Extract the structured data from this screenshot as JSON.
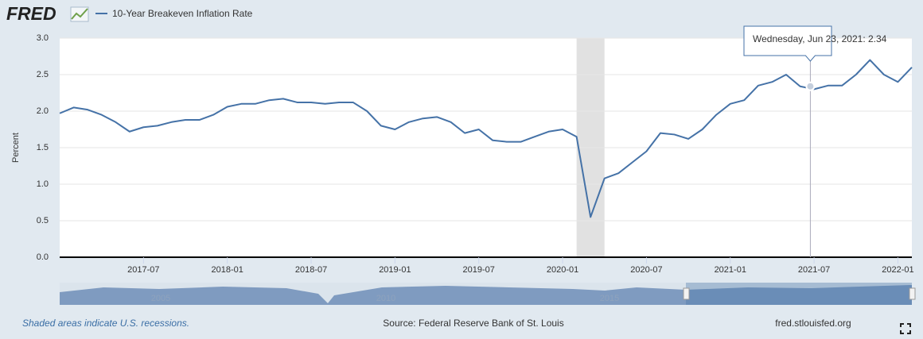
{
  "header": {
    "logo": "FRED"
  },
  "chart_data": {
    "type": "line",
    "series": [
      {
        "name": "10-Year Breakeven Inflation Rate",
        "color": "#4572a7",
        "values": [
          1.97,
          2.05,
          2.02,
          1.95,
          1.85,
          1.72,
          1.78,
          1.8,
          1.85,
          1.88,
          1.88,
          1.95,
          2.06,
          2.1,
          2.1,
          2.15,
          2.17,
          2.12,
          2.12,
          2.1,
          2.12,
          2.12,
          2.0,
          1.8,
          1.75,
          1.85,
          1.9,
          1.92,
          1.85,
          1.7,
          1.75,
          1.6,
          1.58,
          1.58,
          1.65,
          1.72,
          1.75,
          1.65,
          0.55,
          1.08,
          1.15,
          1.3,
          1.45,
          1.7,
          1.68,
          1.62,
          1.75,
          1.95,
          2.1,
          2.15,
          2.35,
          2.4,
          2.5,
          2.34,
          2.3,
          2.35,
          2.35,
          2.5,
          2.7,
          2.5,
          2.4,
          2.6
        ]
      }
    ],
    "x": [
      "2017-01",
      "2017-02",
      "2017-03",
      "2017-04",
      "2017-05",
      "2017-06",
      "2017-07",
      "2017-08",
      "2017-09",
      "2017-10",
      "2017-11",
      "2017-12",
      "2018-01",
      "2018-02",
      "2018-03",
      "2018-04",
      "2018-05",
      "2018-06",
      "2018-07",
      "2018-08",
      "2018-09",
      "2018-10",
      "2018-11",
      "2018-12",
      "2019-01",
      "2019-02",
      "2019-03",
      "2019-04",
      "2019-05",
      "2019-06",
      "2019-07",
      "2019-08",
      "2019-09",
      "2019-10",
      "2019-11",
      "2019-12",
      "2020-01",
      "2020-02",
      "2020-03",
      "2020-04",
      "2020-05",
      "2020-06",
      "2020-07",
      "2020-08",
      "2020-09",
      "2020-10",
      "2020-11",
      "2020-12",
      "2021-01",
      "2021-02",
      "2021-03",
      "2021-04",
      "2021-05",
      "2021-06",
      "2021-07",
      "2021-08",
      "2021-09",
      "2021-10",
      "2021-11",
      "2021-12",
      "2022-01",
      "2022-02"
    ],
    "xlim": [
      "2017-01",
      "2022-02"
    ],
    "xticks": [
      "2017-07",
      "2018-01",
      "2018-07",
      "2019-01",
      "2019-07",
      "2020-01",
      "2020-07",
      "2021-01",
      "2021-07",
      "2022-01"
    ],
    "ylim": [
      0,
      3
    ],
    "yticks": [
      {
        "value": 0,
        "label": "0.0"
      },
      0.5,
      {
        "value": 1,
        "label": "1.0"
      },
      1.5,
      {
        "value": 2,
        "label": "2.0"
      },
      2.5,
      {
        "value": 3,
        "label": "3.0"
      }
    ],
    "ylabel": "Percent",
    "grid": true,
    "recessions": [
      [
        "2020-02",
        "2020-04"
      ]
    ],
    "tooltip": {
      "label": "Wednesday, Jun 23, 2021:",
      "value": 2.34
    },
    "navigator": {
      "labels": [
        "2005",
        "2010",
        "2015"
      ]
    }
  },
  "footer": {
    "note": "Shaded areas indicate U.S. recessions.",
    "source": "Source: Federal Reserve Bank of St. Louis",
    "site": "fred.stlouisfed.org"
  }
}
